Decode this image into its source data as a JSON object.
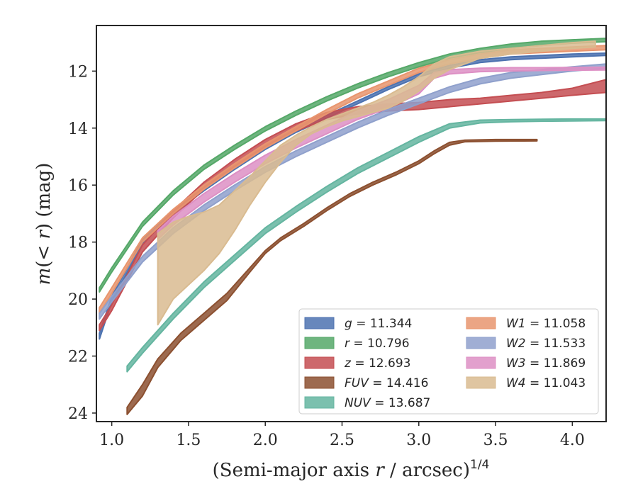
{
  "chart_data": {
    "type": "line",
    "xlabel": "(Semi-major axis r / arcsec)",
    "xlabel_parts": {
      "main": "(Semi-major axis ",
      "var": "r",
      "rest": " / arcsec)",
      "exponent": "1/4"
    },
    "ylabel": "m(< r) (mag)",
    "ylabel_parts": {
      "m": "m",
      "open": "(",
      "lt": "< ",
      "r": "r",
      "close": ") (mag)"
    },
    "xlim": [
      0.9,
      4.22
    ],
    "ylim": [
      24.3,
      10.4
    ],
    "xticks": [
      1.0,
      1.5,
      2.0,
      2.5,
      3.0,
      3.5,
      4.0
    ],
    "xtick_labels": [
      "1.0",
      "1.5",
      "2.0",
      "2.5",
      "3.0",
      "3.5",
      "4.0"
    ],
    "yticks": [
      12,
      14,
      16,
      18,
      20,
      22,
      24
    ],
    "ytick_labels": [
      "12",
      "14",
      "16",
      "18",
      "20",
      "22",
      "24"
    ],
    "grid": false,
    "legend_position": "lower-right",
    "legend_columns": 2,
    "series": [
      {
        "name": "g = 11.344",
        "sym": "g",
        "val": "11.344",
        "color": "#4c72b0",
        "x": [
          0.92,
          1.0,
          1.2,
          1.4,
          1.6,
          1.8,
          2.0,
          2.2,
          2.4,
          2.6,
          2.8,
          3.0,
          3.2,
          3.4,
          3.6,
          3.8,
          4.0,
          4.22
        ],
        "lo": [
          21.2,
          19.9,
          17.9,
          16.9,
          16.1,
          15.35,
          14.65,
          14.05,
          13.55,
          13.05,
          12.55,
          12.1,
          11.8,
          11.6,
          11.5,
          11.45,
          11.4,
          11.37
        ],
        "hi": [
          21.4,
          20.1,
          18.05,
          17.0,
          16.2,
          15.45,
          14.75,
          14.15,
          13.65,
          13.15,
          12.65,
          12.2,
          11.9,
          11.7,
          11.6,
          11.55,
          11.5,
          11.45
        ]
      },
      {
        "name": "r = 10.796",
        "sym": "r",
        "val": "10.796",
        "color": "#55a868",
        "x": [
          0.92,
          1.0,
          1.2,
          1.4,
          1.6,
          1.8,
          2.0,
          2.2,
          2.4,
          2.6,
          2.8,
          3.0,
          3.2,
          3.4,
          3.6,
          3.8,
          4.0,
          4.22
        ],
        "lo": [
          19.6,
          18.9,
          17.3,
          16.2,
          15.3,
          14.6,
          13.95,
          13.4,
          12.9,
          12.45,
          12.05,
          11.7,
          11.4,
          11.2,
          11.05,
          10.95,
          10.9,
          10.85
        ],
        "hi": [
          19.75,
          19.05,
          17.45,
          16.35,
          15.45,
          14.75,
          14.1,
          13.55,
          13.05,
          12.6,
          12.2,
          11.85,
          11.55,
          11.35,
          11.2,
          11.1,
          11.02,
          10.97
        ]
      },
      {
        "name": "z = 12.693",
        "sym": "z",
        "val": "12.693",
        "color": "#c44e52",
        "x": [
          0.92,
          1.0,
          1.2,
          1.4,
          1.6,
          1.8,
          2.0,
          2.2,
          2.4,
          2.6,
          2.8,
          3.0,
          3.2,
          3.4,
          3.6,
          3.8,
          4.0,
          4.22
        ],
        "lo": [
          20.9,
          20.2,
          18.1,
          16.9,
          15.9,
          15.1,
          14.4,
          13.85,
          13.45,
          13.25,
          13.15,
          13.1,
          13.0,
          12.95,
          12.85,
          12.75,
          12.6,
          12.3
        ],
        "hi": [
          21.1,
          20.4,
          18.35,
          17.15,
          16.15,
          15.35,
          14.65,
          14.1,
          13.7,
          13.5,
          13.4,
          13.35,
          13.25,
          13.15,
          13.05,
          12.95,
          12.85,
          12.75
        ]
      },
      {
        "name": "FUV = 14.416",
        "sym": "FUV",
        "val": "14.416",
        "color": "#8c5030",
        "x": [
          1.1,
          1.2,
          1.3,
          1.45,
          1.6,
          1.75,
          1.9,
          2.0,
          2.1,
          2.25,
          2.4,
          2.55,
          2.7,
          2.85,
          3.0,
          3.1,
          3.2,
          3.3,
          3.5,
          3.77
        ],
        "lo": [
          23.8,
          23.0,
          22.1,
          21.2,
          20.5,
          19.8,
          18.9,
          18.3,
          17.85,
          17.35,
          16.8,
          16.3,
          15.9,
          15.55,
          15.15,
          14.8,
          14.5,
          14.42,
          14.4,
          14.4
        ],
        "hi": [
          24.05,
          23.4,
          22.4,
          21.45,
          20.75,
          20.05,
          19.05,
          18.4,
          17.95,
          17.45,
          16.9,
          16.4,
          16.0,
          15.65,
          15.25,
          14.9,
          14.6,
          14.48,
          14.46,
          14.45
        ]
      },
      {
        "name": "NUV = 13.687",
        "sym": "NUV",
        "val": "13.687",
        "color": "#64b5a0",
        "x": [
          1.1,
          1.2,
          1.4,
          1.6,
          1.8,
          2.0,
          2.2,
          2.4,
          2.6,
          2.8,
          3.0,
          3.2,
          3.4,
          3.6,
          3.8,
          4.0,
          4.22
        ],
        "lo": [
          22.35,
          21.7,
          20.5,
          19.4,
          18.45,
          17.5,
          16.75,
          16.05,
          15.4,
          14.85,
          14.3,
          13.85,
          13.72,
          13.7,
          13.69,
          13.68,
          13.68
        ],
        "hi": [
          22.55,
          21.9,
          20.7,
          19.6,
          18.65,
          17.7,
          16.95,
          16.25,
          15.6,
          15.05,
          14.5,
          14.0,
          13.82,
          13.78,
          13.76,
          13.75,
          13.74
        ]
      },
      {
        "name": "W1 = 11.058",
        "sym": "W1",
        "val": "11.058",
        "color": "#e8956e",
        "x": [
          0.92,
          1.0,
          1.2,
          1.4,
          1.6,
          1.8,
          2.0,
          2.2,
          2.4,
          2.6,
          2.8,
          3.0,
          3.2,
          3.4,
          3.6,
          3.8,
          4.0,
          4.22
        ],
        "lo": [
          20.3,
          19.6,
          17.85,
          16.85,
          16.0,
          15.25,
          14.55,
          13.95,
          13.35,
          12.8,
          12.35,
          11.9,
          11.6,
          11.4,
          11.25,
          11.2,
          11.15,
          11.1
        ],
        "hi": [
          20.5,
          19.8,
          18.0,
          17.0,
          16.15,
          15.4,
          14.7,
          14.1,
          13.5,
          12.95,
          12.5,
          12.05,
          11.75,
          11.55,
          11.4,
          11.35,
          11.3,
          11.25
        ]
      },
      {
        "name": "W2 = 11.533",
        "sym": "W2",
        "val": "11.533",
        "color": "#8fa0cc",
        "x": [
          0.92,
          1.0,
          1.2,
          1.4,
          1.6,
          1.8,
          2.0,
          2.2,
          2.4,
          2.6,
          2.8,
          3.0,
          3.2,
          3.4,
          3.6,
          3.8,
          4.0,
          4.22
        ],
        "lo": [
          20.5,
          19.9,
          18.5,
          17.5,
          16.7,
          16.0,
          15.35,
          14.8,
          14.3,
          13.8,
          13.35,
          12.95,
          12.55,
          12.25,
          12.05,
          11.95,
          11.85,
          11.75
        ],
        "hi": [
          20.7,
          20.1,
          18.7,
          17.7,
          16.9,
          16.2,
          15.55,
          15.0,
          14.5,
          14.0,
          13.55,
          13.15,
          12.75,
          12.45,
          12.25,
          12.12,
          12.0,
          11.9
        ]
      },
      {
        "name": "W3 = 11.869",
        "sym": "W3",
        "val": "11.869",
        "color": "#dd8fc4",
        "x": [
          1.3,
          1.4,
          1.6,
          1.8,
          2.0,
          2.2,
          2.4,
          2.6,
          2.8,
          3.0,
          3.1,
          3.2,
          3.4,
          3.6,
          3.8,
          4.0,
          4.22
        ],
        "lo": [
          17.6,
          17.1,
          16.3,
          15.6,
          14.95,
          14.4,
          13.9,
          13.4,
          13.0,
          12.5,
          12.05,
          11.95,
          11.9,
          11.88,
          11.88,
          11.87,
          11.86
        ],
        "hi": [
          17.9,
          17.4,
          16.6,
          15.9,
          15.25,
          14.7,
          14.2,
          13.7,
          13.3,
          12.8,
          12.25,
          12.1,
          12.02,
          12.0,
          11.98,
          11.97,
          11.96
        ]
      },
      {
        "name": "W4 = 11.043",
        "sym": "W4",
        "val": "11.043",
        "color": "#d9bb90",
        "x": [
          1.3,
          1.4,
          1.5,
          1.6,
          1.7,
          1.8,
          1.9,
          2.0,
          2.1,
          2.2,
          2.3,
          2.4,
          2.5,
          2.6,
          2.7,
          2.8,
          2.9,
          3.0,
          3.1,
          3.2,
          3.4,
          3.6,
          3.8,
          4.0,
          4.15
        ],
        "lo": [
          17.7,
          17.3,
          17.1,
          16.95,
          16.7,
          16.2,
          15.7,
          15.15,
          14.6,
          14.25,
          13.95,
          13.7,
          13.5,
          13.3,
          13.1,
          12.85,
          12.55,
          12.2,
          11.75,
          11.5,
          11.3,
          11.2,
          11.1,
          11.0,
          10.95
        ],
        "hi": [
          20.9,
          20.0,
          19.5,
          19.0,
          18.4,
          17.6,
          16.7,
          15.9,
          15.2,
          14.6,
          14.2,
          13.95,
          13.75,
          13.6,
          13.45,
          13.3,
          13.05,
          12.7,
          12.25,
          11.95,
          11.55,
          11.4,
          11.3,
          11.2,
          11.15
        ]
      }
    ]
  }
}
